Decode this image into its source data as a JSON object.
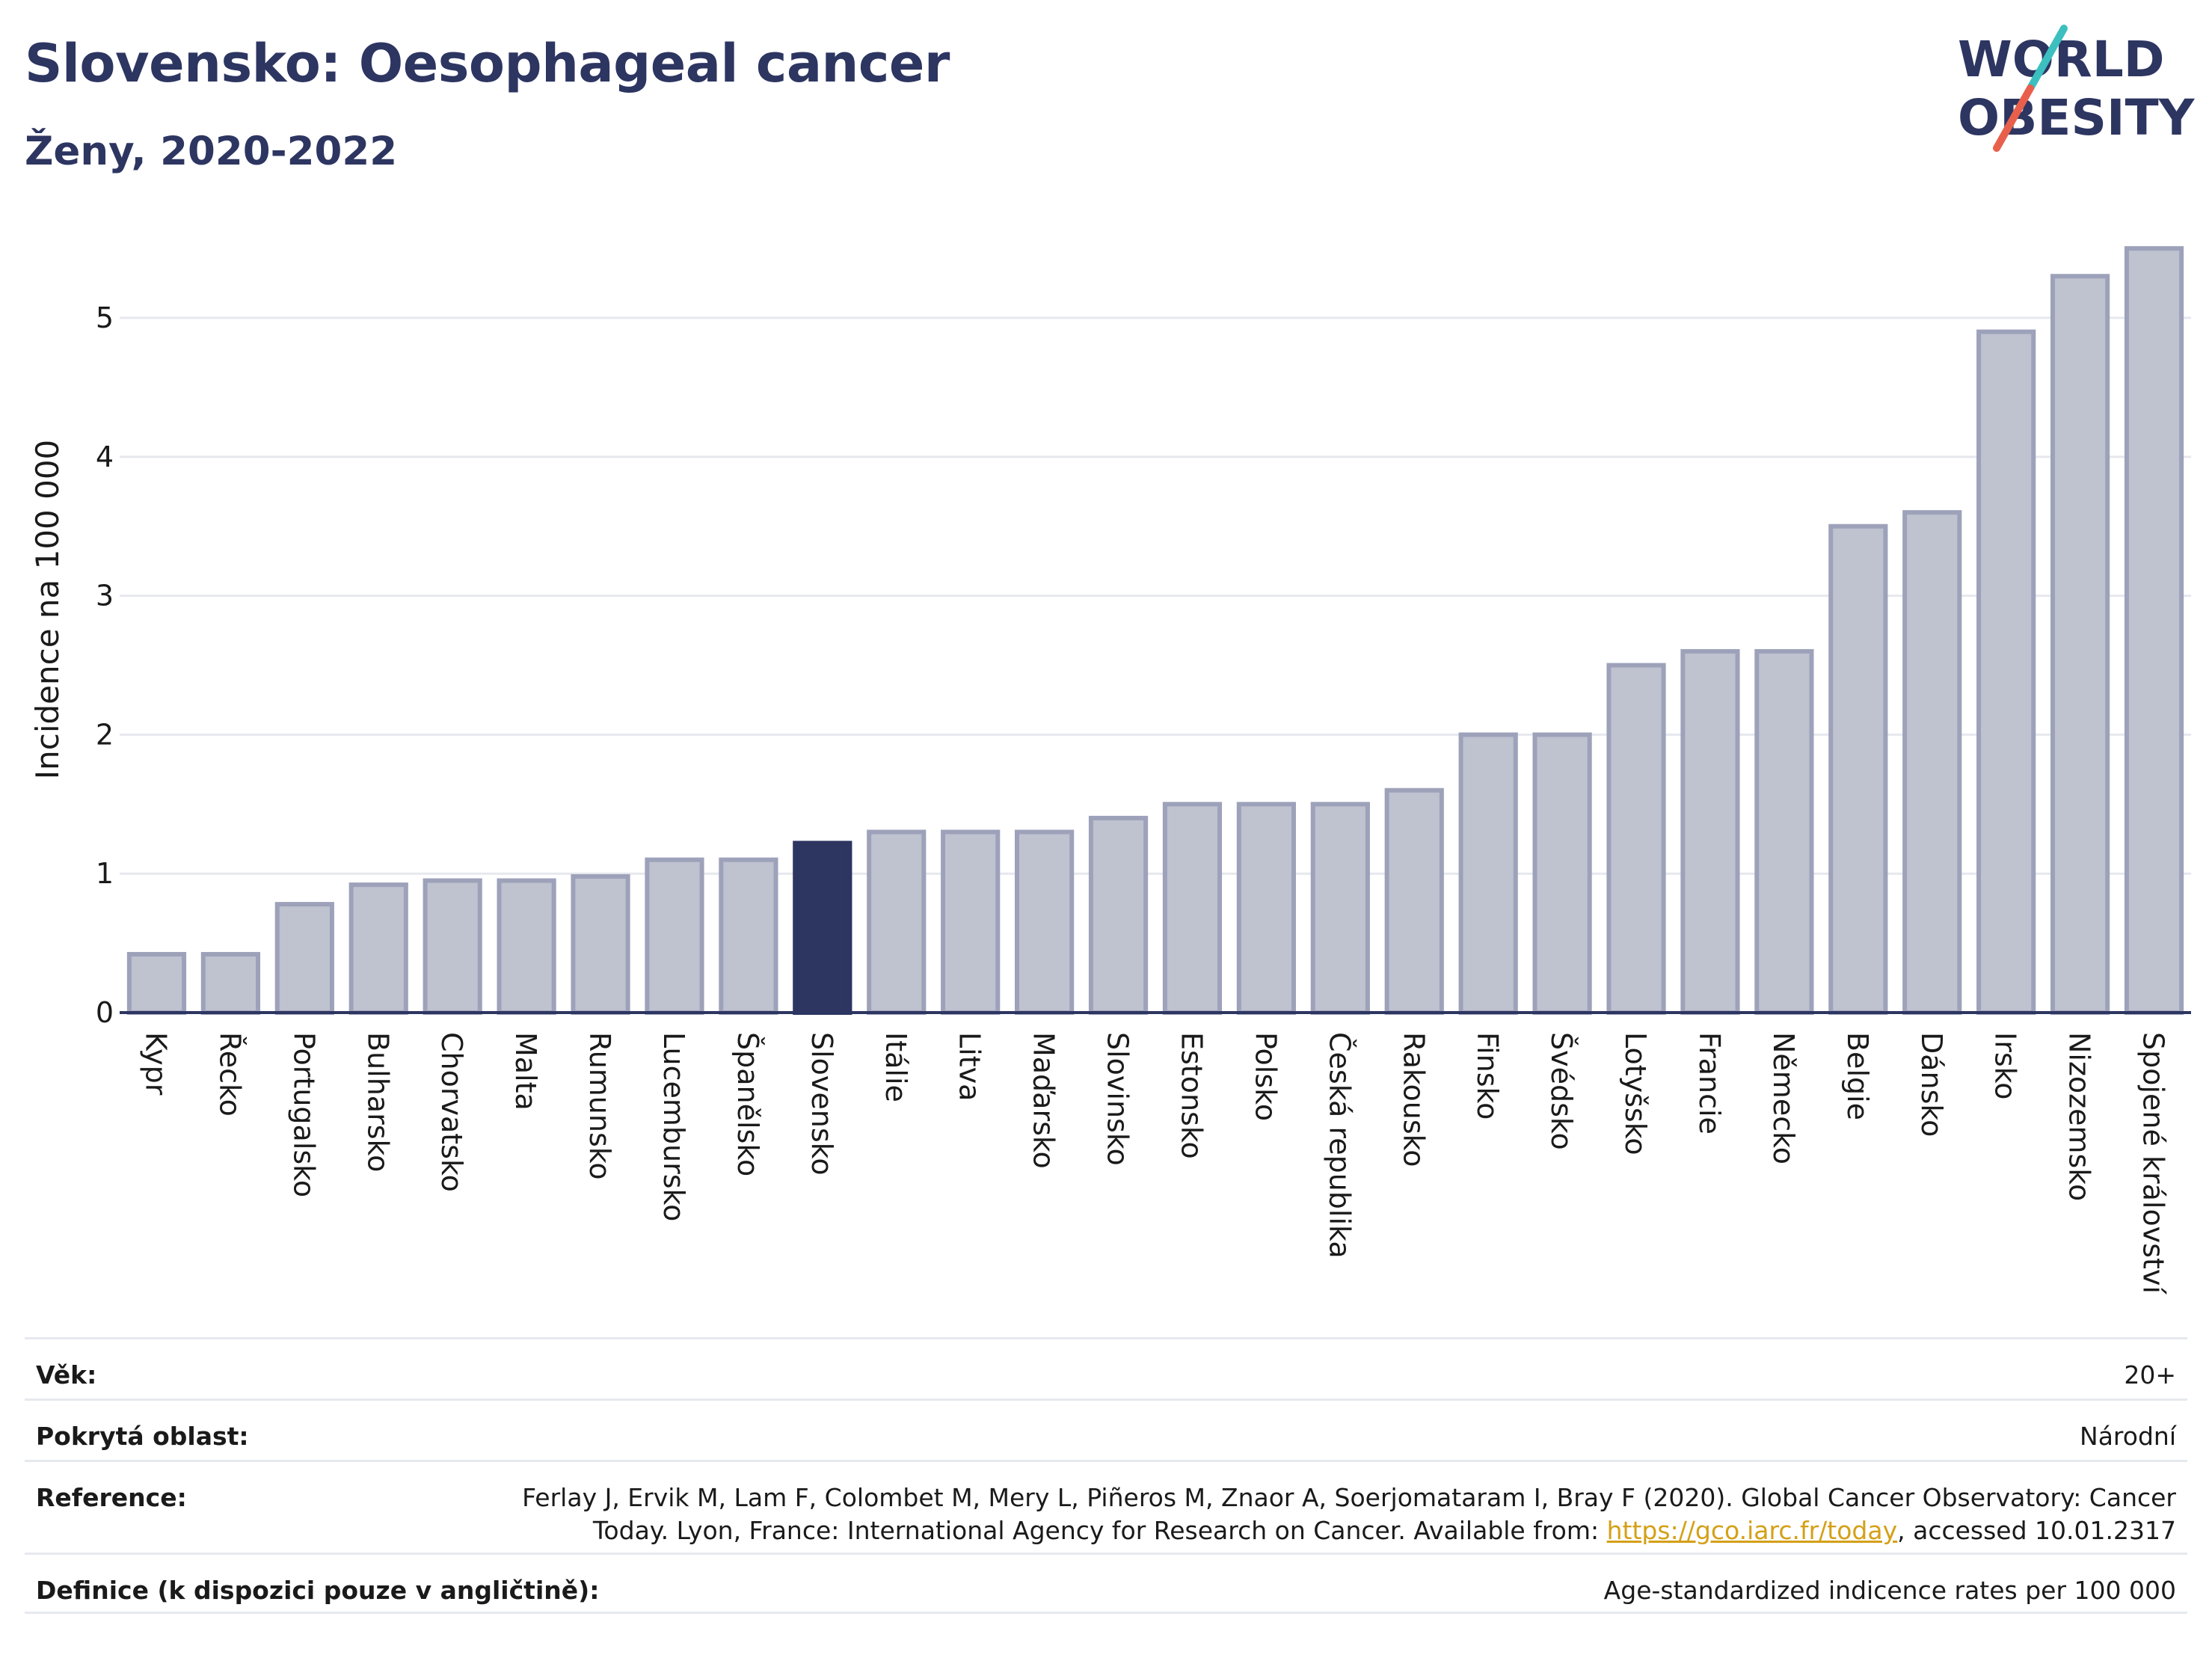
{
  "header": {
    "title": "Slovensko: Oesophageal cancer",
    "subtitle": "Ženy, 2020-2022"
  },
  "logo": {
    "line1": "WORLD",
    "line2": "OBESITY",
    "colors": {
      "text": "#2d3561",
      "slash_teal": "#3bbfbf",
      "slash_red": "#e8604c"
    }
  },
  "chart_data": {
    "type": "bar",
    "ylabel": "Incidence na 100 000",
    "xlabel": "",
    "ylim": [
      0,
      5.7
    ],
    "yticks": [
      0,
      1,
      2,
      3,
      4,
      5
    ],
    "grid": true,
    "highlight": "Slovensko",
    "colors": {
      "bar": "#bfc2cf",
      "bar_edge": "#9da2ba",
      "highlight": "#2d3561",
      "grid": "#e6e8ee",
      "axis": "#2d3561"
    },
    "categories": [
      "Kypr",
      "Řecko",
      "Portugalsko",
      "Bulharsko",
      "Chorvatsko",
      "Malta",
      "Rumunsko",
      "Lucembursko",
      "Španělsko",
      "Slovensko",
      "Itálie",
      "Litva",
      "Maďarsko",
      "Slovinsko",
      "Estonsko",
      "Polsko",
      "Česká republika",
      "Rakousko",
      "Finsko",
      "Švédsko",
      "Lotyšsko",
      "Francie",
      "Německo",
      "Belgie",
      "Dánsko",
      "Irsko",
      "Nizozemsko",
      "Spojené království"
    ],
    "values": [
      0.42,
      0.42,
      0.78,
      0.92,
      0.95,
      0.95,
      0.98,
      1.1,
      1.1,
      1.22,
      1.3,
      1.3,
      1.3,
      1.4,
      1.5,
      1.5,
      1.5,
      1.6,
      2.0,
      2.0,
      2.5,
      2.6,
      2.6,
      3.5,
      3.6,
      4.9,
      5.3,
      5.5
    ]
  },
  "meta": {
    "age_label": "Věk:",
    "age_value": "20+",
    "coverage_label": "Pokrytá oblast:",
    "coverage_value": "Národní",
    "reference_label": "Reference:",
    "reference_text_1": "Ferlay J, Ervik M, Lam F, Colombet M, Mery L, Piñeros M, Znaor A, Soerjomataram I, Bray F (2020). Global Cancer Observatory: Cancer",
    "reference_text_2": "Today. Lyon, France: International Agency for Research on Cancer. Available from: ",
    "reference_link": "https://gco.iarc.fr/today",
    "reference_text_3": ", accessed 10.01.2317",
    "definition_label": "Definice (k dispozici pouze v angličtině):",
    "definition_value": "Age-standardized indicence rates per 100 000"
  }
}
